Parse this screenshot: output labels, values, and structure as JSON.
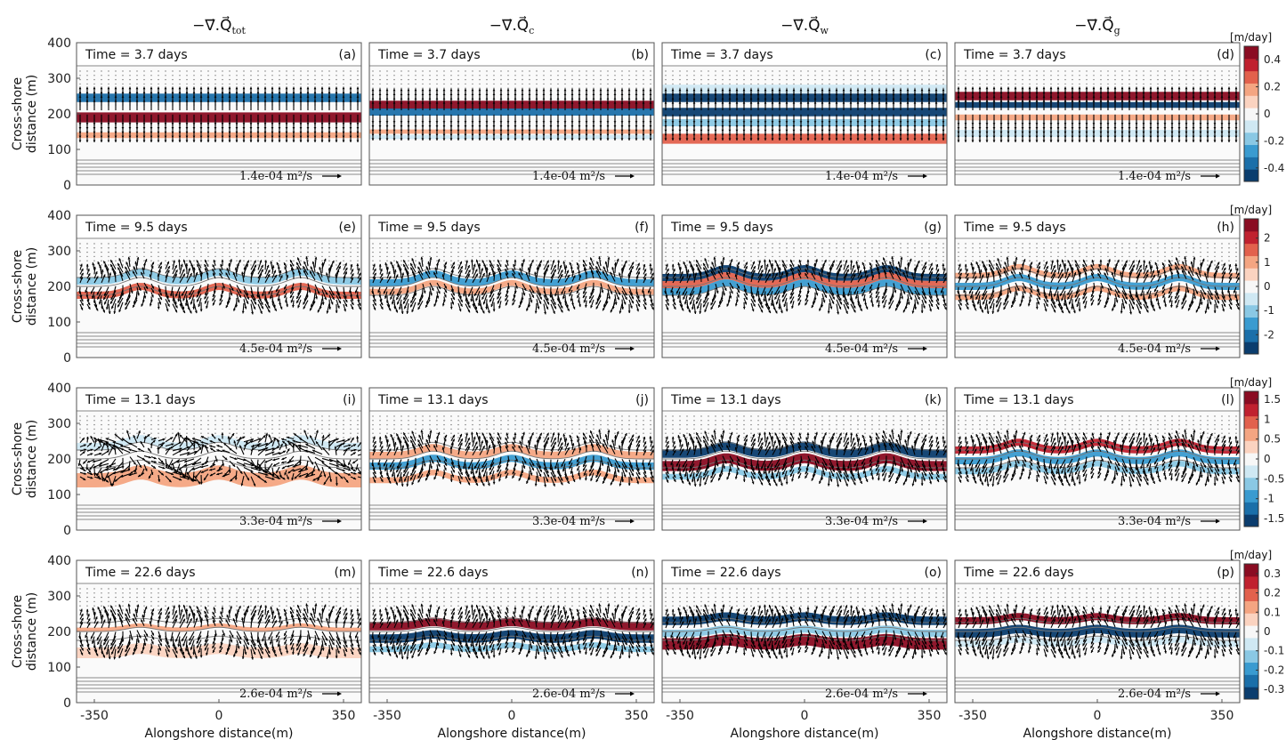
{
  "chart_data": {
    "type": "heatmap",
    "columns": [
      {
        "title": "−∇⃗.Q⃗",
        "subscript": "tot"
      },
      {
        "title": "−∇⃗.Q⃗",
        "subscript": "c"
      },
      {
        "title": "−∇⃗.Q⃗",
        "subscript": "w"
      },
      {
        "title": "−∇⃗.Q⃗",
        "subscript": "g"
      }
    ],
    "rows": [
      {
        "time": "Time = 3.7 days",
        "scale": "1.4e-04 m²/s",
        "colorbar": {
          "unit": "[m/day]",
          "ticks": [
            "0.4",
            "0.2",
            "0",
            "-0.2",
            "-0.4"
          ],
          "range": [
            -0.5,
            0.5
          ]
        },
        "stage": 0
      },
      {
        "time": "Time = 9.5 days",
        "scale": "4.5e-04 m²/s",
        "colorbar": {
          "unit": "[m/day]",
          "ticks": [
            "2",
            "1",
            "0",
            "-1",
            "-2"
          ],
          "range": [
            -2.8,
            2.8
          ]
        },
        "stage": 1
      },
      {
        "time": "Time = 13.1 days",
        "scale": "3.3e-04 m²/s",
        "colorbar": {
          "unit": "[m/day]",
          "ticks": [
            "1.5",
            "1",
            "0.5",
            "0",
            "-0.5",
            "-1",
            "-1.5"
          ],
          "range": [
            -1.7,
            1.7
          ]
        },
        "stage": 2
      },
      {
        "time": "Time = 22.6 days",
        "scale": "2.6e-04 m²/s",
        "colorbar": {
          "unit": "[m/day]",
          "ticks": [
            "0.3",
            "0.2",
            "0.1",
            "0",
            "-0.1",
            "-0.2",
            "-0.3"
          ],
          "range": [
            -0.35,
            0.35
          ]
        },
        "stage": 3
      }
    ],
    "panel_labels": [
      "(a)",
      "(b)",
      "(c)",
      "(d)",
      "(e)",
      "(f)",
      "(g)",
      "(h)",
      "(i)",
      "(j)",
      "(k)",
      "(l)",
      "(m)",
      "(n)",
      "(o)",
      "(p)"
    ],
    "xlabel": "Alongshore distance(m)",
    "ylabel": [
      "Cross-shore",
      "distance (m)"
    ],
    "xticks": [
      -350,
      0,
      350
    ],
    "xlim": [
      -400,
      400
    ],
    "yticks": [
      0,
      100,
      200,
      300,
      400
    ],
    "ylim": [
      0,
      400
    ],
    "colormap": [
      "#0b3d6e",
      "#1b6fa9",
      "#3a9bd0",
      "#8ac8e4",
      "#cfe8f3",
      "#f7f7f7",
      "#fbd3c0",
      "#f4a582",
      "#e2614d",
      "#c0212f",
      "#8a0c22"
    ]
  }
}
